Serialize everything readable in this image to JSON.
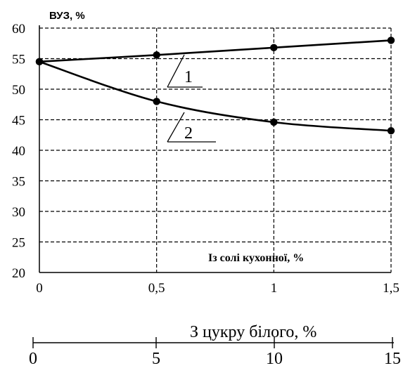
{
  "chart_data": {
    "type": "line",
    "ylabel": "ВУЗ, %",
    "xlabel": "Із солі кухонної, %",
    "secondary_xlabel": "З цукру білого, %",
    "x": [
      0,
      0.5,
      1,
      1.5
    ],
    "x_tick_labels": [
      "0",
      "0,5",
      "1",
      "1,5"
    ],
    "secondary_x_tick_labels": [
      "0",
      "5",
      "10",
      "15"
    ],
    "ylim": [
      20,
      60
    ],
    "y_ticks": [
      20,
      25,
      30,
      35,
      40,
      45,
      50,
      55,
      60
    ],
    "grid": true,
    "series": [
      {
        "label": "1",
        "values": [
          54.5,
          55.6,
          56.8,
          58.0
        ]
      },
      {
        "label": "2",
        "values": [
          54.5,
          48.0,
          44.6,
          43.2
        ]
      }
    ]
  }
}
